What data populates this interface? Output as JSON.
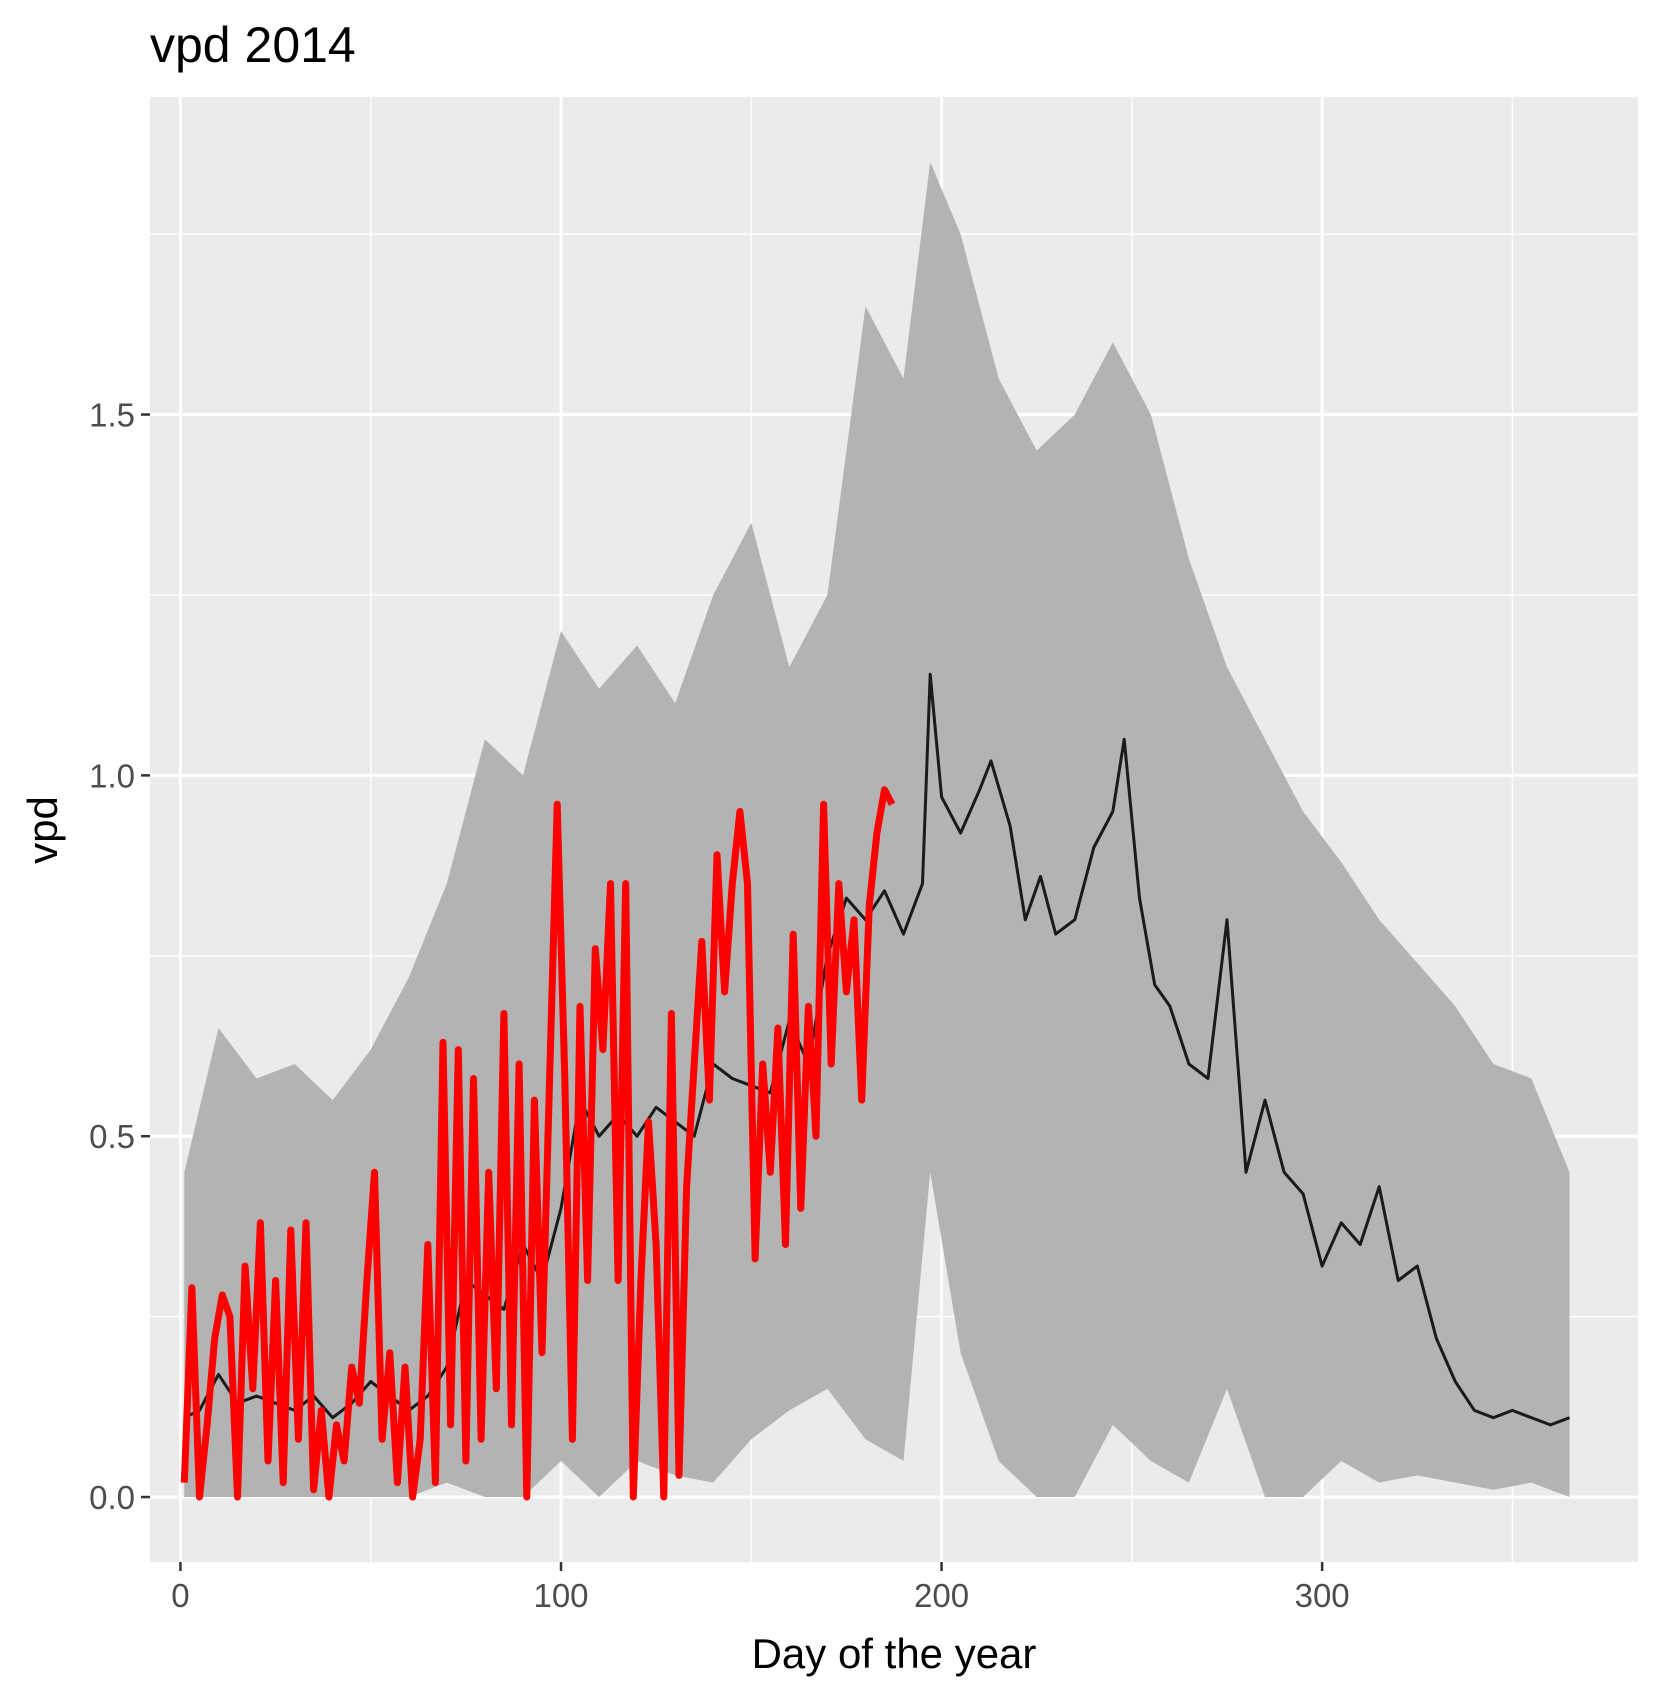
{
  "chart_data": {
    "type": "area",
    "title": "vpd 2014",
    "xlabel": "Day of the year",
    "ylabel": "vpd",
    "xlim": [
      -8,
      383
    ],
    "ylim": [
      -0.09,
      1.94
    ],
    "x_ticks": [
      {
        "value": 0,
        "label": "0"
      },
      {
        "value": 100,
        "label": "100"
      },
      {
        "value": 200,
        "label": "200"
      },
      {
        "value": 300,
        "label": "300"
      }
    ],
    "y_ticks": [
      {
        "value": 0.0,
        "label": "0.0"
      },
      {
        "value": 0.5,
        "label": "0.5"
      },
      {
        "value": 1.0,
        "label": "1.0"
      },
      {
        "value": 1.5,
        "label": "1.5"
      }
    ],
    "x_minor": [
      50,
      150,
      250,
      350
    ],
    "y_minor": [
      0.25,
      0.75,
      1.25,
      1.75
    ],
    "grid": true,
    "legend": "none",
    "colors": {
      "panel": "#ebebeb",
      "grid": "#ffffff",
      "ribbon": "#b3b3b3",
      "mean_line": "#1a1a1a",
      "year_line": "#ff0000",
      "tick": "#333333"
    },
    "ribbon": {
      "x": [
        1,
        10,
        20,
        30,
        40,
        50,
        60,
        70,
        80,
        90,
        100,
        110,
        120,
        130,
        140,
        150,
        160,
        170,
        180,
        190,
        197,
        205,
        215,
        225,
        235,
        245,
        255,
        265,
        275,
        285,
        295,
        305,
        315,
        325,
        335,
        345,
        355,
        365
      ],
      "upper": [
        0.45,
        0.65,
        0.58,
        0.6,
        0.55,
        0.62,
        0.72,
        0.85,
        1.05,
        1.0,
        1.2,
        1.12,
        1.18,
        1.1,
        1.25,
        1.35,
        1.15,
        1.25,
        1.65,
        1.55,
        1.85,
        1.75,
        1.55,
        1.45,
        1.5,
        1.6,
        1.5,
        1.3,
        1.15,
        1.05,
        0.95,
        0.88,
        0.8,
        0.74,
        0.68,
        0.6,
        0.58,
        0.45
      ],
      "lower": [
        0.0,
        0.0,
        0.0,
        0.0,
        0.0,
        0.0,
        0.0,
        0.02,
        0.0,
        0.0,
        0.05,
        0.0,
        0.05,
        0.03,
        0.02,
        0.08,
        0.12,
        0.15,
        0.08,
        0.05,
        0.45,
        0.2,
        0.05,
        0.0,
        0.0,
        0.1,
        0.05,
        0.02,
        0.15,
        0.0,
        0.0,
        0.05,
        0.02,
        0.03,
        0.02,
        0.01,
        0.02,
        0.0
      ]
    },
    "series": [
      {
        "x": [
          1,
          5,
          10,
          15,
          20,
          25,
          30,
          35,
          40,
          45,
          50,
          55,
          60,
          65,
          70,
          75,
          80,
          85,
          90,
          95,
          100,
          105,
          110,
          115,
          120,
          125,
          130,
          135,
          140,
          145,
          150,
          155,
          160,
          165,
          170,
          175,
          180,
          185,
          190,
          195,
          197,
          200,
          205,
          210,
          213,
          218,
          222,
          226,
          230,
          235,
          240,
          245,
          248,
          252,
          256,
          260,
          265,
          270,
          275,
          280,
          285,
          290,
          295,
          300,
          305,
          310,
          315,
          320,
          325,
          330,
          335,
          340,
          345,
          350,
          355,
          360,
          365
        ],
        "y": [
          0.11,
          0.12,
          0.17,
          0.13,
          0.14,
          0.13,
          0.12,
          0.14,
          0.11,
          0.13,
          0.16,
          0.14,
          0.12,
          0.14,
          0.18,
          0.3,
          0.28,
          0.26,
          0.35,
          0.3,
          0.4,
          0.55,
          0.5,
          0.53,
          0.5,
          0.54,
          0.52,
          0.5,
          0.6,
          0.58,
          0.57,
          0.56,
          0.66,
          0.6,
          0.75,
          0.83,
          0.8,
          0.84,
          0.78,
          0.85,
          1.14,
          0.97,
          0.92,
          0.98,
          1.02,
          0.93,
          0.8,
          0.86,
          0.78,
          0.8,
          0.9,
          0.95,
          1.05,
          0.83,
          0.71,
          0.68,
          0.6,
          0.58,
          0.8,
          0.45,
          0.55,
          0.45,
          0.42,
          0.32,
          0.38,
          0.35,
          0.43,
          0.3,
          0.32,
          0.22,
          0.16,
          0.12,
          0.11,
          0.12,
          0.11,
          0.1,
          0.11
        ]
      },
      {
        "x": [
          1,
          3,
          5,
          7,
          9,
          11,
          13,
          15,
          17,
          19,
          21,
          23,
          25,
          27,
          29,
          31,
          33,
          35,
          37,
          39,
          41,
          43,
          45,
          47,
          49,
          51,
          53,
          55,
          57,
          59,
          61,
          63,
          65,
          67,
          69,
          71,
          73,
          75,
          77,
          79,
          81,
          83,
          85,
          87,
          89,
          91,
          93,
          95,
          97,
          99,
          101,
          103,
          105,
          107,
          109,
          111,
          113,
          115,
          117,
          119,
          121,
          123,
          125,
          127,
          129,
          131,
          133,
          135,
          137,
          139,
          141,
          143,
          145,
          147,
          149,
          151,
          153,
          155,
          157,
          159,
          161,
          163,
          165,
          167,
          169,
          171,
          173,
          175,
          177,
          179,
          181,
          183,
          185,
          187
        ],
        "y": [
          0.02,
          0.29,
          0.0,
          0.1,
          0.22,
          0.28,
          0.25,
          0.0,
          0.32,
          0.15,
          0.38,
          0.05,
          0.3,
          0.02,
          0.37,
          0.08,
          0.38,
          0.01,
          0.12,
          0.0,
          0.1,
          0.05,
          0.18,
          0.13,
          0.3,
          0.45,
          0.08,
          0.2,
          0.02,
          0.18,
          0.0,
          0.08,
          0.35,
          0.02,
          0.63,
          0.1,
          0.62,
          0.05,
          0.58,
          0.08,
          0.45,
          0.15,
          0.67,
          0.1,
          0.6,
          0.0,
          0.55,
          0.2,
          0.58,
          0.96,
          0.58,
          0.08,
          0.68,
          0.3,
          0.76,
          0.62,
          0.85,
          0.3,
          0.85,
          0.0,
          0.3,
          0.52,
          0.35,
          0.0,
          0.67,
          0.03,
          0.43,
          0.6,
          0.77,
          0.55,
          0.89,
          0.7,
          0.85,
          0.95,
          0.85,
          0.33,
          0.6,
          0.45,
          0.65,
          0.35,
          0.78,
          0.4,
          0.68,
          0.5,
          0.96,
          0.6,
          0.85,
          0.7,
          0.8,
          0.55,
          0.82,
          0.92,
          0.98,
          0.96
        ]
      }
    ]
  }
}
